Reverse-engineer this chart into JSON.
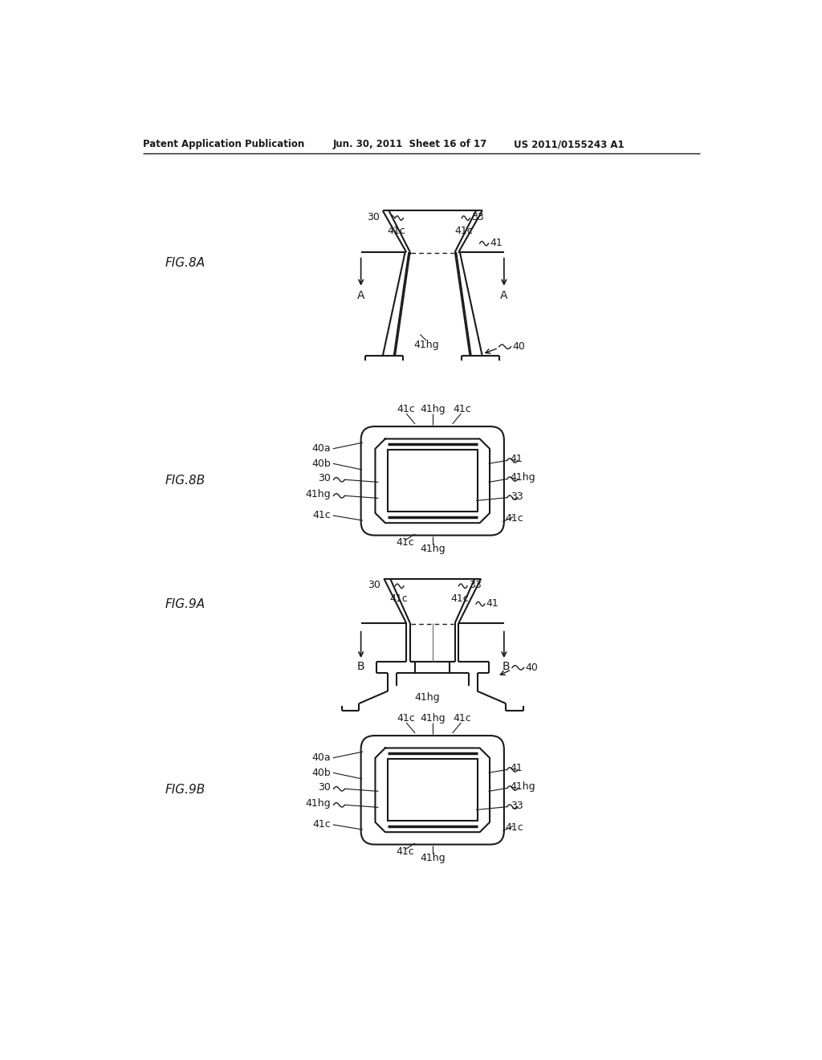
{
  "header_left": "Patent Application Publication",
  "header_mid": "Jun. 30, 2011  Sheet 16 of 17",
  "header_right": "US 2011/0155243 A1",
  "background_color": "#ffffff",
  "line_color": "#1a1a1a",
  "text_color": "#1a1a1a"
}
